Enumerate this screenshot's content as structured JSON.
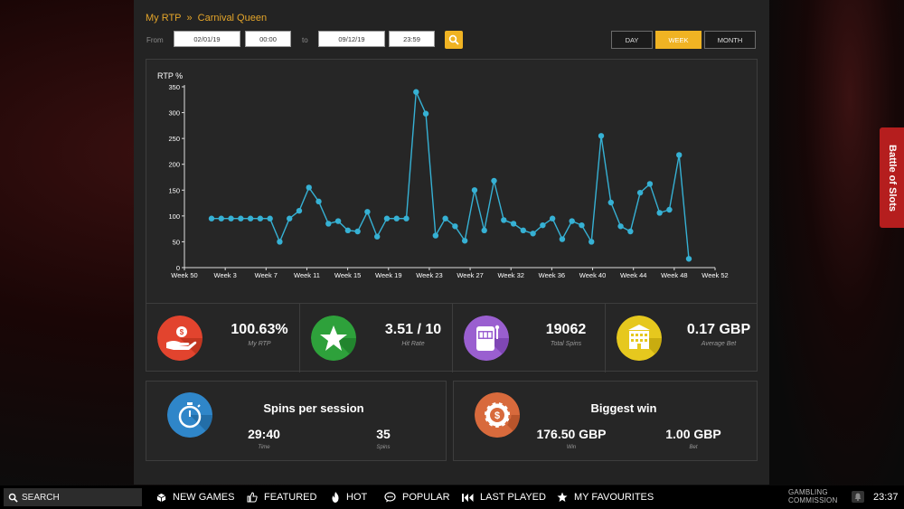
{
  "breadcrumb": {
    "root": "My RTP",
    "separator": "»",
    "current": "Carnival Queen"
  },
  "filter": {
    "from_label": "From",
    "from_date": "02/01/19",
    "from_time": "00:00",
    "to_label": "to",
    "to_date": "09/12/19",
    "to_time": "23:59"
  },
  "periods": {
    "day": "DAY",
    "week": "WEEK",
    "month": "MONTH",
    "active": "week"
  },
  "chart_data": {
    "type": "line",
    "ylabel": "RTP %",
    "ylim": [
      0,
      350
    ],
    "yticks": [
      0,
      50,
      100,
      150,
      200,
      250,
      300,
      350
    ],
    "x_tick_labels": [
      "Week 50",
      "Week 3",
      "Week 7",
      "Week 11",
      "Week 15",
      "Week 19",
      "Week 23",
      "Week 27",
      "Week 32",
      "Week 36",
      "Week 40",
      "Week 44",
      "Week 48",
      "Week 52"
    ],
    "series": [
      {
        "color": "#36b1d4",
        "values": [
          95,
          95,
          95,
          95,
          95,
          95,
          95,
          50,
          95,
          110,
          155,
          128,
          85,
          90,
          72,
          70,
          108,
          60,
          95,
          95,
          95,
          340,
          298,
          62,
          95,
          80,
          52,
          150,
          72,
          168,
          92,
          85,
          72,
          66,
          82,
          95,
          55,
          90,
          82,
          50,
          255,
          126,
          80,
          70,
          145,
          162,
          106,
          112,
          218,
          17
        ]
      }
    ],
    "grid": false,
    "legend": "none"
  },
  "stats": [
    {
      "value": "100.63%",
      "label": "My RTP",
      "icon": "hand-coin-icon",
      "color": "#e2442e"
    },
    {
      "value": "3.51 / 10",
      "label": "Hit Rate",
      "icon": "star-icon",
      "color": "#2ea13b"
    },
    {
      "value": "19062",
      "label": "Total Spins",
      "icon": "slot-machine-icon",
      "color": "#9a5fd0"
    },
    {
      "value": "0.17 GBP",
      "label": "Average Bet",
      "icon": "casino-building-icon",
      "color": "#e6c81e"
    }
  ],
  "session": {
    "title": "Spins per session",
    "time_value": "29:40",
    "time_label": "Time",
    "spins_value": "35",
    "spins_label": "Spins",
    "icon": "stopwatch-icon",
    "color": "#2f86c9"
  },
  "biggest_win": {
    "title": "Biggest win",
    "win_value": "176.50 GBP",
    "win_label": "Win",
    "bet_value": "1.00 GBP",
    "bet_label": "Bet",
    "icon": "casino-chip-icon",
    "color": "#d86a3c"
  },
  "side_tab": {
    "label": "Battle of Slots"
  },
  "bottom_nav": {
    "search": "SEARCH",
    "new_games": "NEW GAMES",
    "featured": "FEATURED",
    "hot": "HOT",
    "popular": "POPULAR",
    "last_played": "LAST PLAYED",
    "favourites": "MY FAVOURITES"
  },
  "footer": {
    "gc_line1": "GAMBLING",
    "gc_line2": "COMMISSION",
    "clock": "23:37"
  }
}
